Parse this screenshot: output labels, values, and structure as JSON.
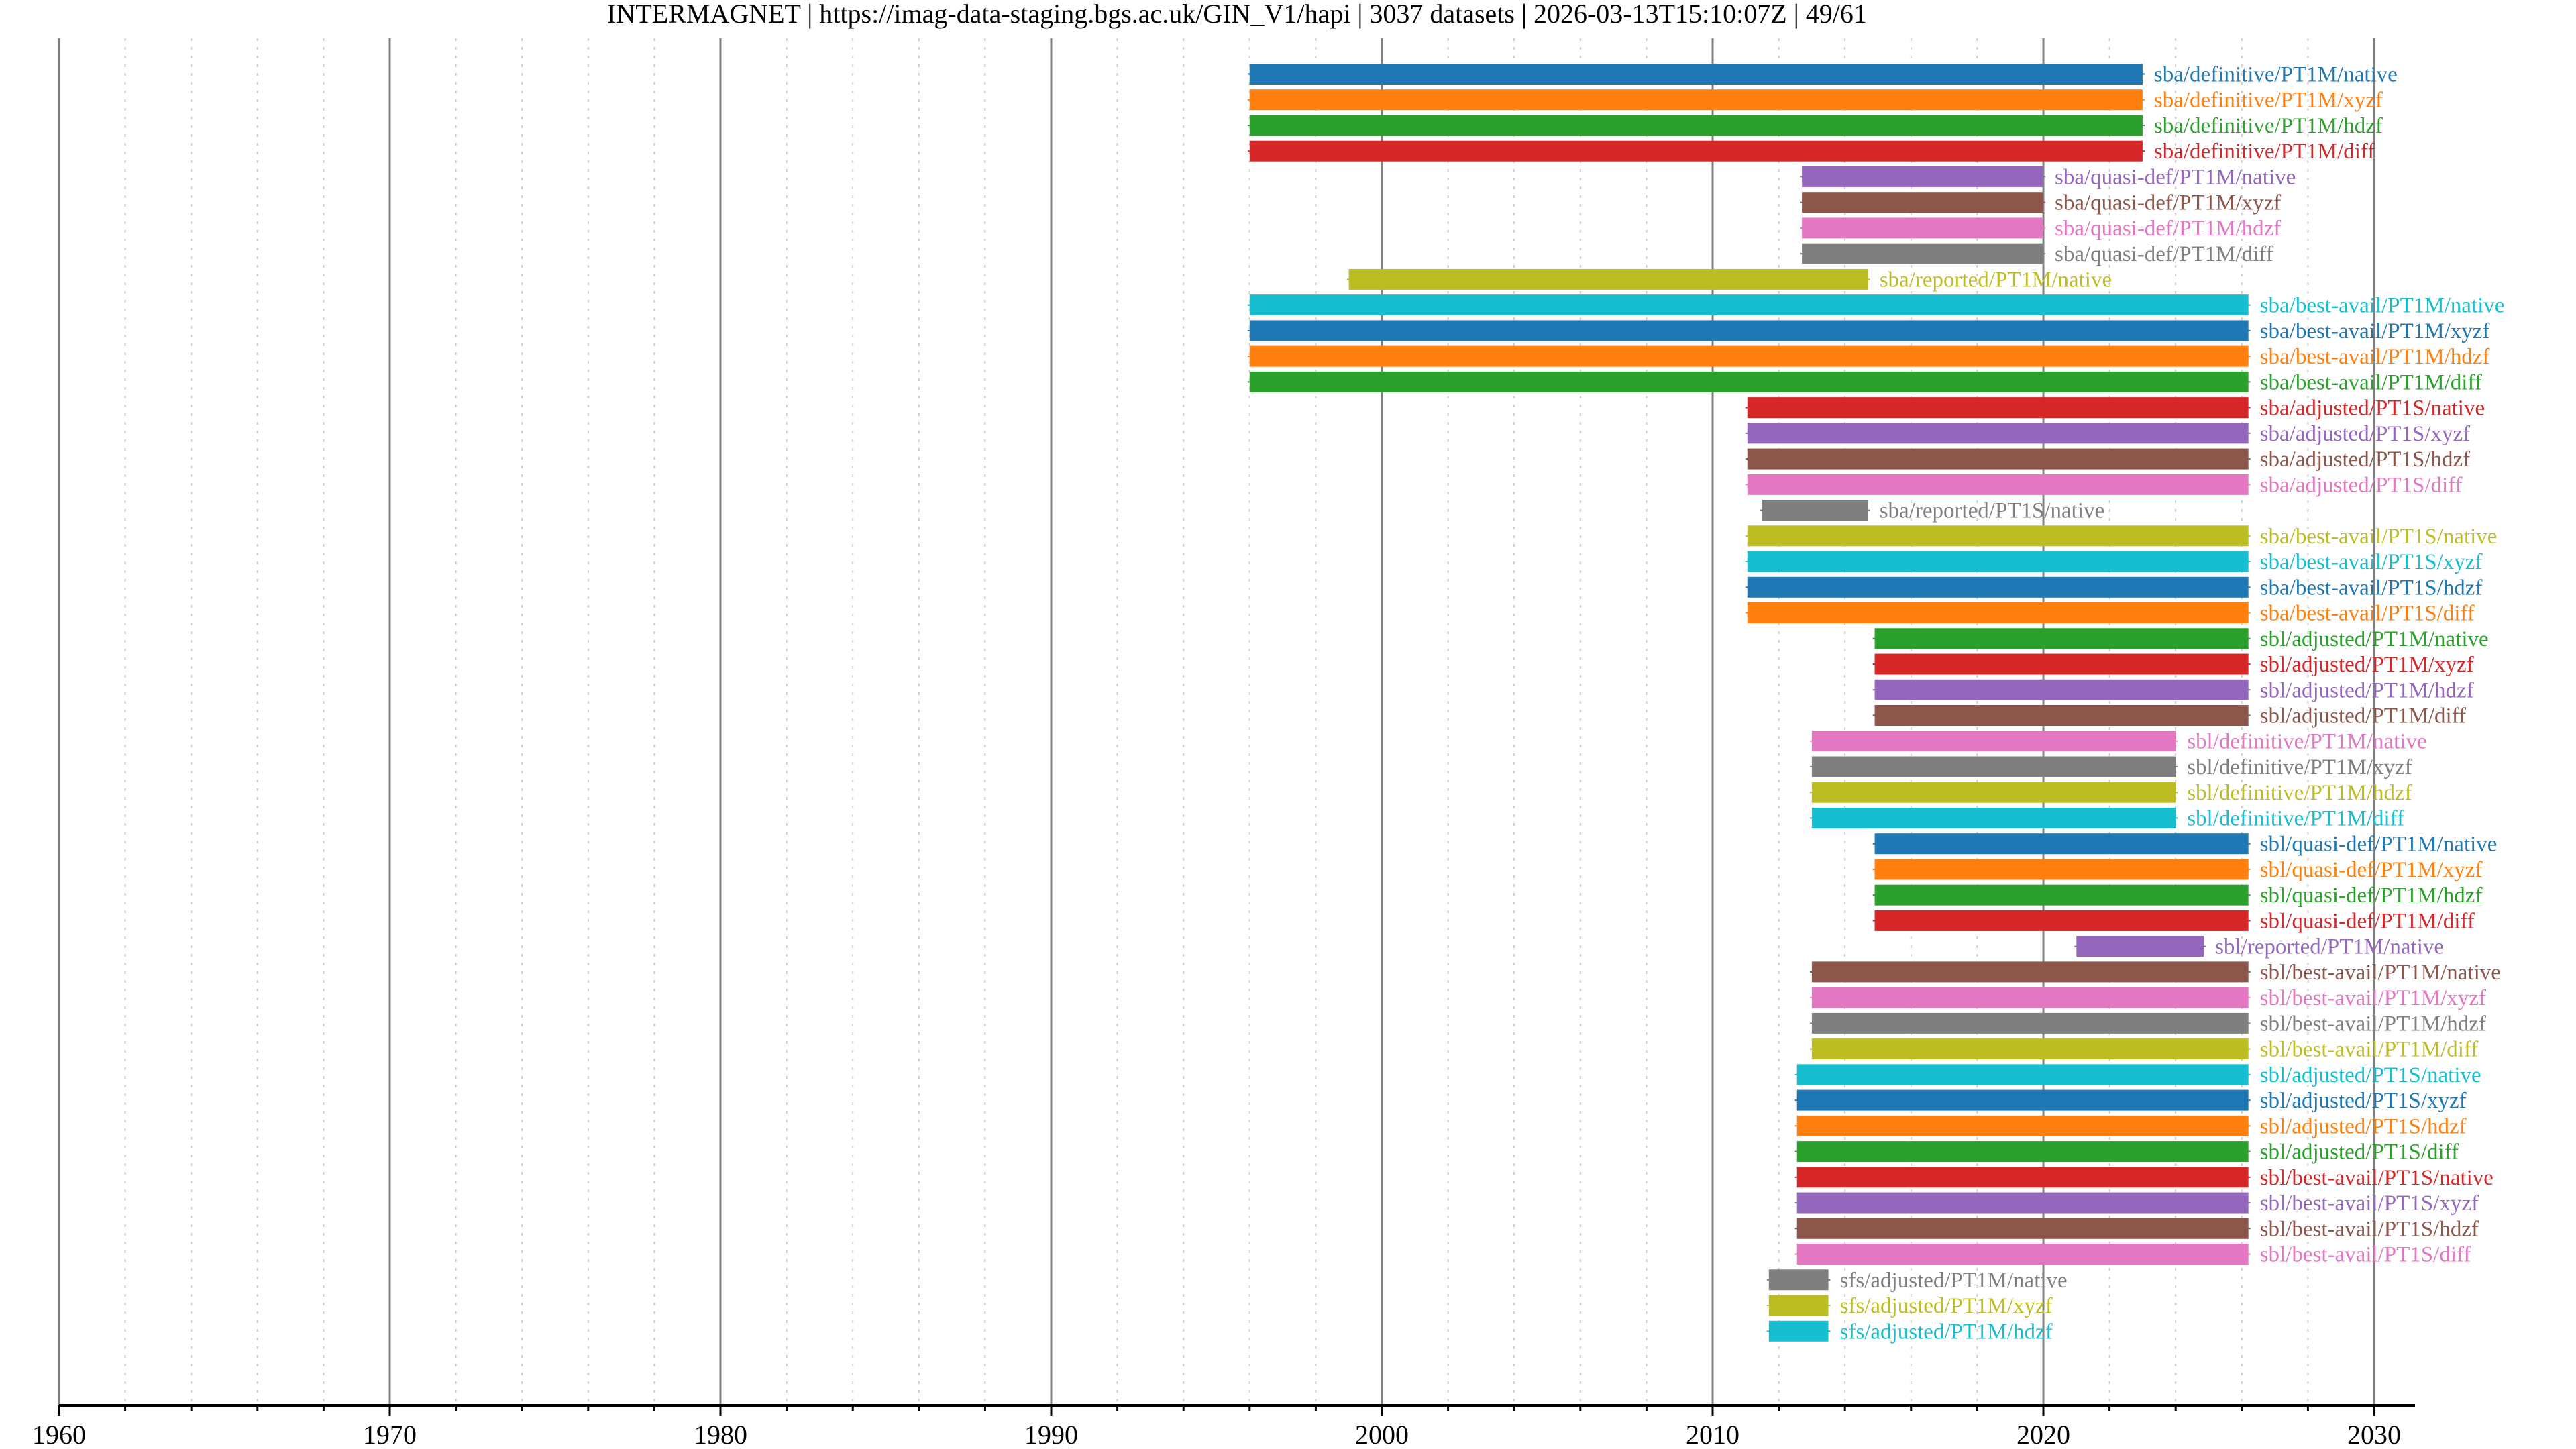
{
  "chart_data": {
    "type": "timeline",
    "title": "INTERMAGNET | https://imag-data-staging.bgs.ac.uk/GIN_V1/hapi | 3037 datasets | 2026-03-13T15:10:07Z | 49/61",
    "xlabel": "",
    "ylabel": "",
    "xlim": [
      1960,
      2031.5
    ],
    "x_major_ticks": [
      1960,
      1970,
      1980,
      1990,
      2000,
      2010,
      2020,
      2030
    ],
    "x_tick_labels": [
      "1960",
      "1970",
      "1980",
      "1990",
      "2000",
      "2010",
      "2020",
      "2030"
    ],
    "x_minor_step": 2,
    "grid": true,
    "legend": "none (labels at bar ends)",
    "palette": [
      "#1f77b4",
      "#ff7f0e",
      "#2ca02c",
      "#d62728",
      "#9467bd",
      "#8c564b",
      "#e377c2",
      "#7f7f7f",
      "#bcbd22",
      "#17becf"
    ],
    "series": [
      {
        "name": "sba/definitive/PT1M/native",
        "start": 1996.0,
        "end": 2023.0
      },
      {
        "name": "sba/definitive/PT1M/xyzf",
        "start": 1996.0,
        "end": 2023.0
      },
      {
        "name": "sba/definitive/PT1M/hdzf",
        "start": 1996.0,
        "end": 2023.0
      },
      {
        "name": "sba/definitive/PT1M/diff",
        "start": 1996.0,
        "end": 2023.0
      },
      {
        "name": "sba/quasi-def/PT1M/native",
        "start": 2012.7,
        "end": 2020.0
      },
      {
        "name": "sba/quasi-def/PT1M/xyzf",
        "start": 2012.7,
        "end": 2020.0
      },
      {
        "name": "sba/quasi-def/PT1M/hdzf",
        "start": 2012.7,
        "end": 2020.0
      },
      {
        "name": "sba/quasi-def/PT1M/diff",
        "start": 2012.7,
        "end": 2020.0
      },
      {
        "name": "sba/reported/PT1M/native",
        "start": 1999.0,
        "end": 2014.7
      },
      {
        "name": "sba/best-avail/PT1M/native",
        "start": 1996.0,
        "end": 2026.2
      },
      {
        "name": "sba/best-avail/PT1M/xyzf",
        "start": 1996.0,
        "end": 2026.2
      },
      {
        "name": "sba/best-avail/PT1M/hdzf",
        "start": 1996.0,
        "end": 2026.2
      },
      {
        "name": "sba/best-avail/PT1M/diff",
        "start": 1996.0,
        "end": 2026.2
      },
      {
        "name": "sba/adjusted/PT1S/native",
        "start": 2011.05,
        "end": 2026.2
      },
      {
        "name": "sba/adjusted/PT1S/xyzf",
        "start": 2011.05,
        "end": 2026.2
      },
      {
        "name": "sba/adjusted/PT1S/hdzf",
        "start": 2011.05,
        "end": 2026.2
      },
      {
        "name": "sba/adjusted/PT1S/diff",
        "start": 2011.05,
        "end": 2026.2
      },
      {
        "name": "sba/reported/PT1S/native",
        "start": 2011.5,
        "end": 2014.7
      },
      {
        "name": "sba/best-avail/PT1S/native",
        "start": 2011.05,
        "end": 2026.2
      },
      {
        "name": "sba/best-avail/PT1S/xyzf",
        "start": 2011.05,
        "end": 2026.2
      },
      {
        "name": "sba/best-avail/PT1S/hdzf",
        "start": 2011.05,
        "end": 2026.2
      },
      {
        "name": "sba/best-avail/PT1S/diff",
        "start": 2011.05,
        "end": 2026.2
      },
      {
        "name": "sbl/adjusted/PT1M/native",
        "start": 2014.9,
        "end": 2026.2
      },
      {
        "name": "sbl/adjusted/PT1M/xyzf",
        "start": 2014.9,
        "end": 2026.2
      },
      {
        "name": "sbl/adjusted/PT1M/hdzf",
        "start": 2014.9,
        "end": 2026.2
      },
      {
        "name": "sbl/adjusted/PT1M/diff",
        "start": 2014.9,
        "end": 2026.2
      },
      {
        "name": "sbl/definitive/PT1M/native",
        "start": 2013.0,
        "end": 2024.0
      },
      {
        "name": "sbl/definitive/PT1M/xyzf",
        "start": 2013.0,
        "end": 2024.0
      },
      {
        "name": "sbl/definitive/PT1M/hdzf",
        "start": 2013.0,
        "end": 2024.0
      },
      {
        "name": "sbl/definitive/PT1M/diff",
        "start": 2013.0,
        "end": 2024.0
      },
      {
        "name": "sbl/quasi-def/PT1M/native",
        "start": 2014.9,
        "end": 2026.2
      },
      {
        "name": "sbl/quasi-def/PT1M/xyzf",
        "start": 2014.9,
        "end": 2026.2
      },
      {
        "name": "sbl/quasi-def/PT1M/hdzf",
        "start": 2014.9,
        "end": 2026.2
      },
      {
        "name": "sbl/quasi-def/PT1M/diff",
        "start": 2014.9,
        "end": 2026.2
      },
      {
        "name": "sbl/reported/PT1M/native",
        "start": 2021.0,
        "end": 2024.85
      },
      {
        "name": "sbl/best-avail/PT1M/native",
        "start": 2013.0,
        "end": 2026.2
      },
      {
        "name": "sbl/best-avail/PT1M/xyzf",
        "start": 2013.0,
        "end": 2026.2
      },
      {
        "name": "sbl/best-avail/PT1M/hdzf",
        "start": 2013.0,
        "end": 2026.2
      },
      {
        "name": "sbl/best-avail/PT1M/diff",
        "start": 2013.0,
        "end": 2026.2
      },
      {
        "name": "sbl/adjusted/PT1S/native",
        "start": 2012.55,
        "end": 2026.2
      },
      {
        "name": "sbl/adjusted/PT1S/xyzf",
        "start": 2012.55,
        "end": 2026.2
      },
      {
        "name": "sbl/adjusted/PT1S/hdzf",
        "start": 2012.55,
        "end": 2026.2
      },
      {
        "name": "sbl/adjusted/PT1S/diff",
        "start": 2012.55,
        "end": 2026.2
      },
      {
        "name": "sbl/best-avail/PT1S/native",
        "start": 2012.55,
        "end": 2026.2
      },
      {
        "name": "sbl/best-avail/PT1S/xyzf",
        "start": 2012.55,
        "end": 2026.2
      },
      {
        "name": "sbl/best-avail/PT1S/hdzf",
        "start": 2012.55,
        "end": 2026.2
      },
      {
        "name": "sbl/best-avail/PT1S/diff",
        "start": 2012.55,
        "end": 2026.2
      },
      {
        "name": "sfs/adjusted/PT1M/native",
        "start": 2011.7,
        "end": 2013.5
      },
      {
        "name": "sfs/adjusted/PT1M/xyzf",
        "start": 2011.7,
        "end": 2013.5
      },
      {
        "name": "sfs/adjusted/PT1M/hdzf",
        "start": 2011.7,
        "end": 2013.5
      }
    ]
  }
}
